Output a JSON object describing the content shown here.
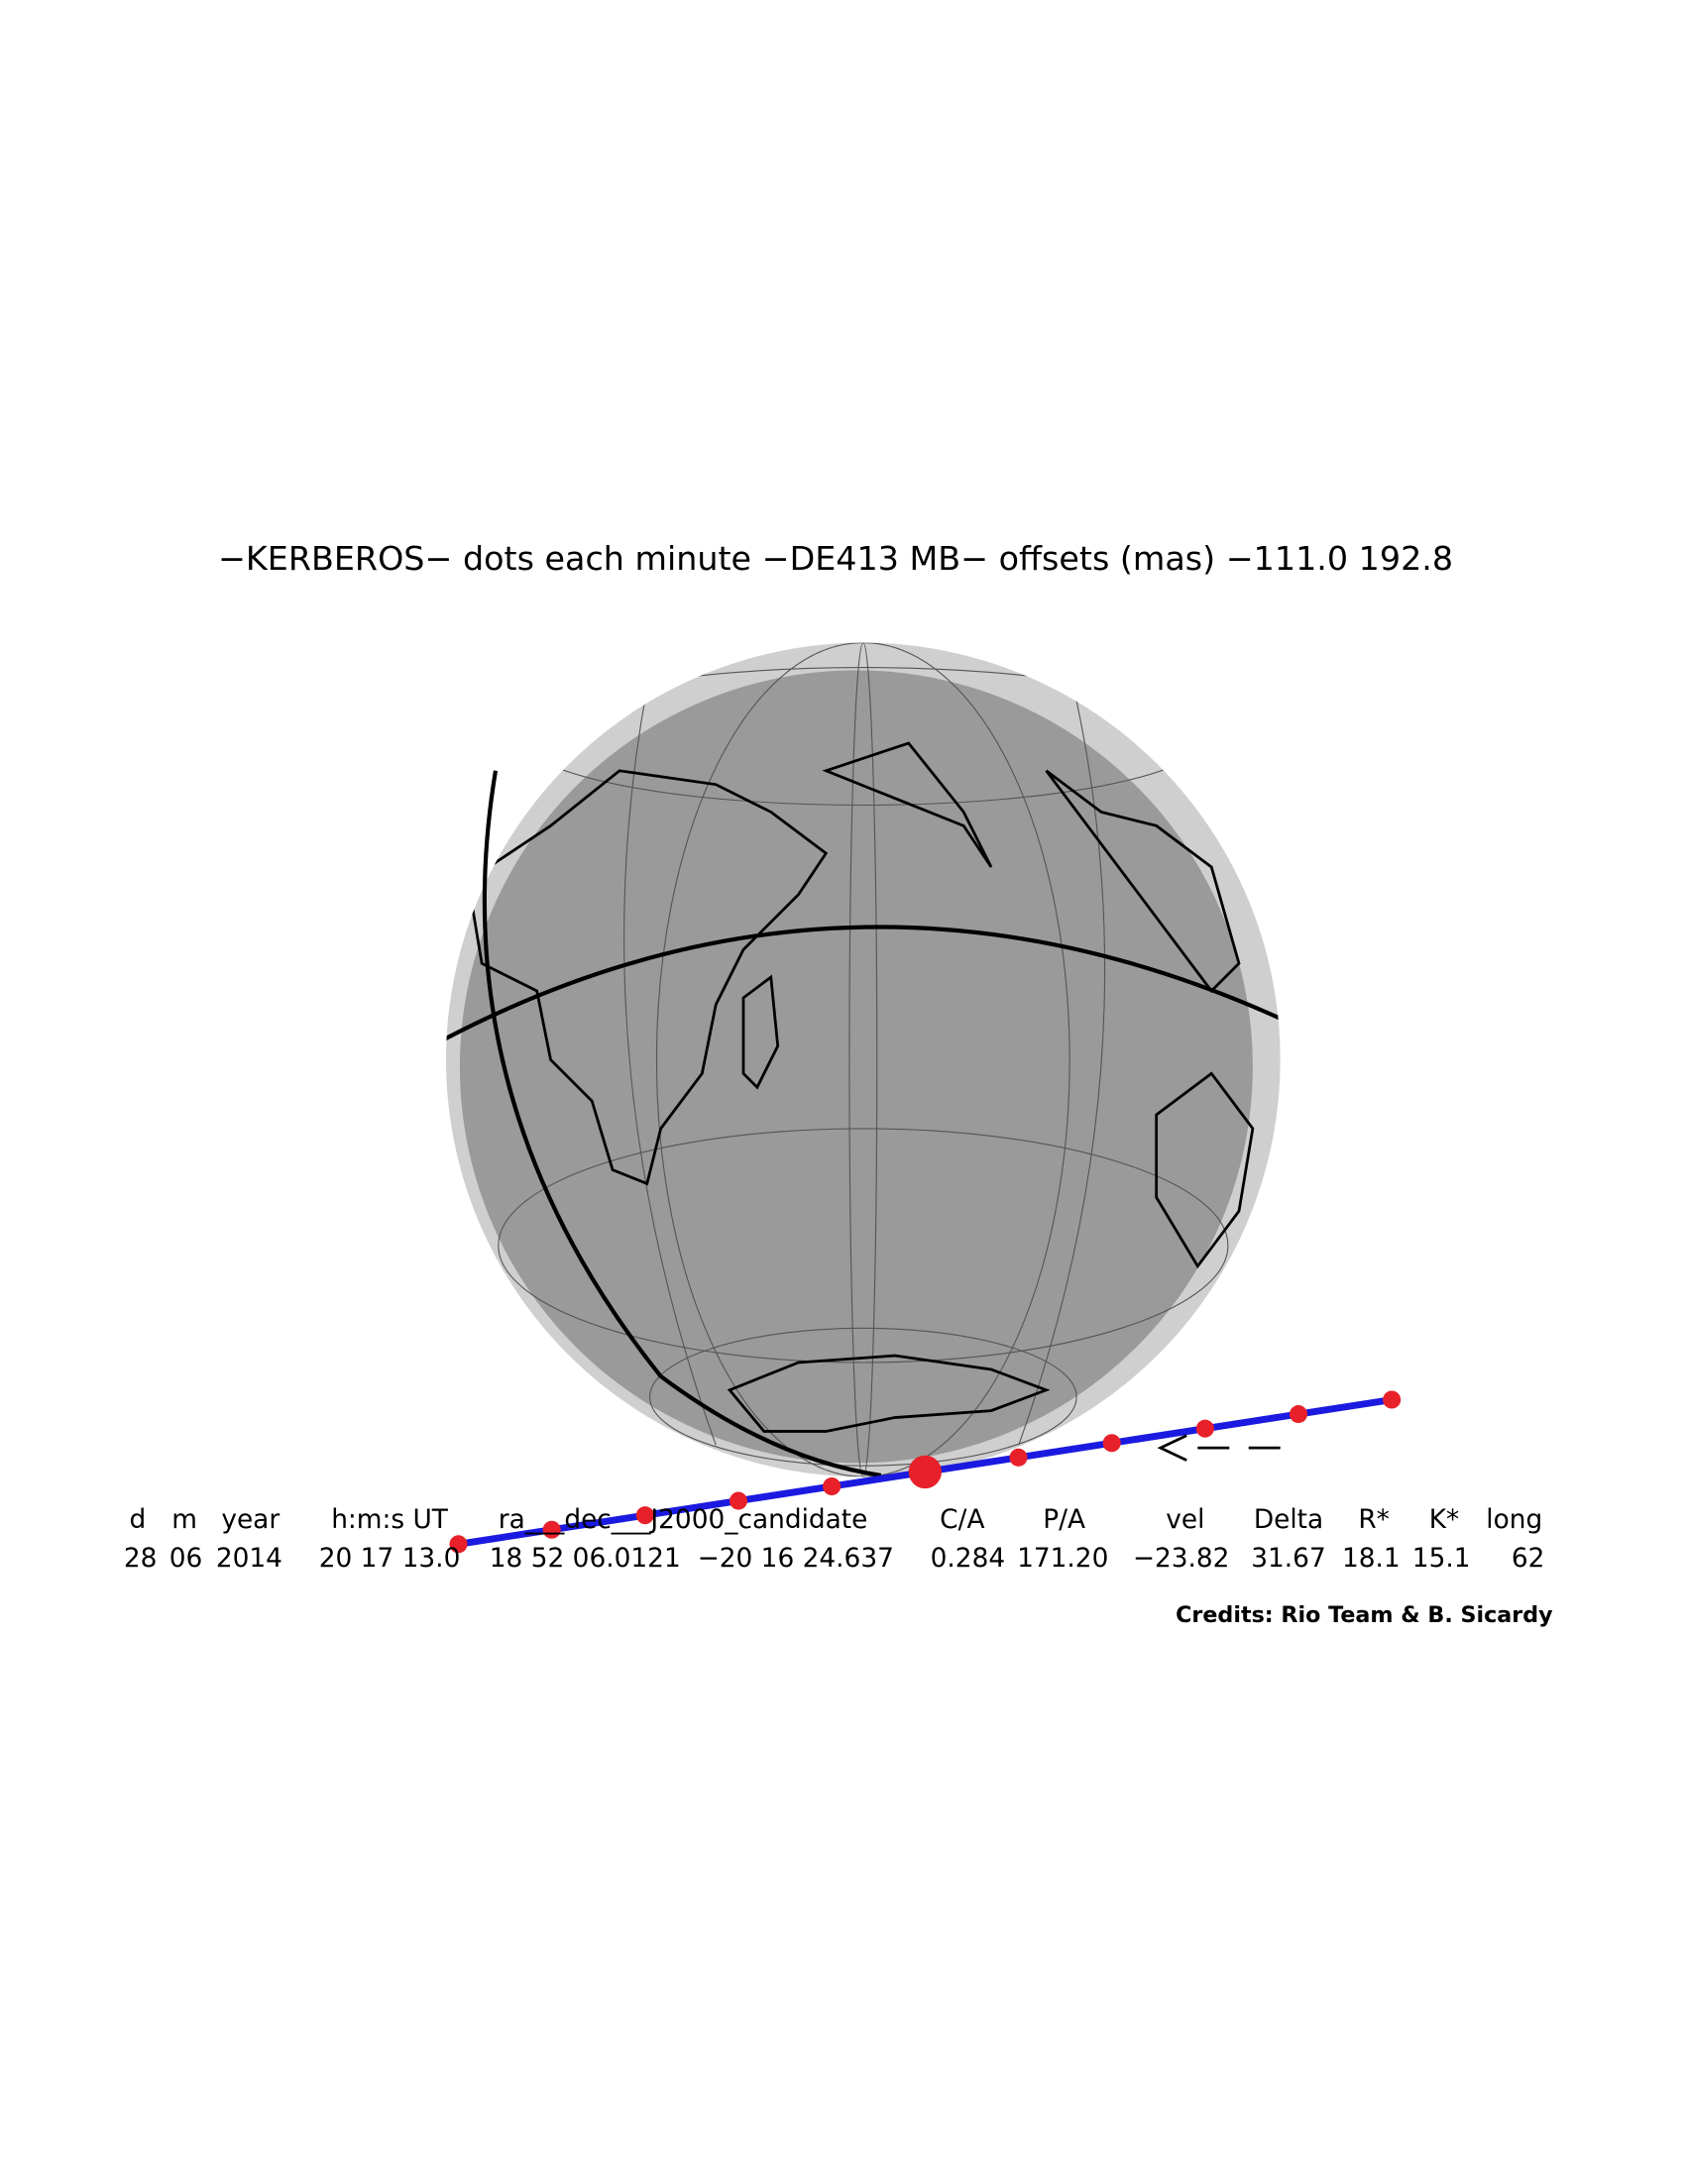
{
  "title": "−KERBEROS− dots each minute −DE413 MB− offsets (mas) −111.0   192.8",
  "table": {
    "headers": [
      "d",
      "m",
      "year",
      "h:m:s UT",
      "ra___dec___J2000_candidate",
      "C/A",
      "P/A",
      "vel",
      "Delta",
      "R*",
      "K*",
      "long"
    ],
    "values": [
      "28",
      "06",
      "2014",
      "20 17 13.0",
      "18 52 06.0121",
      "−20 16 24.637",
      "0.284",
      "171.20",
      "−23.82",
      "31.67",
      "18.1",
      "15.1",
      "62"
    ]
  },
  "credits": "Credits: Rio Team & B. Sicardy"
}
